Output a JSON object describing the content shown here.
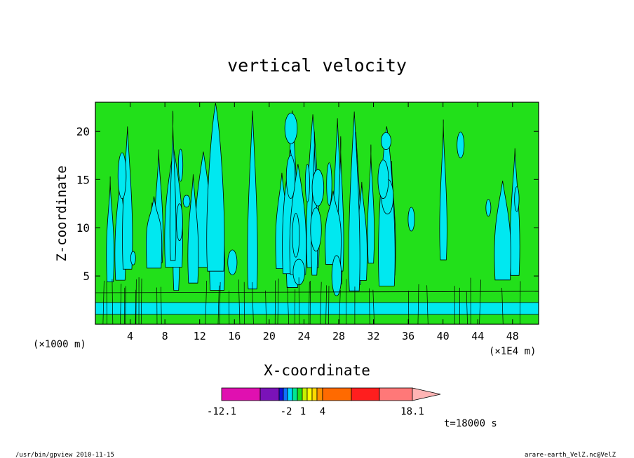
{
  "chart_data": {
    "type": "contour",
    "title": "vertical velocity",
    "xlabel": "X-coordinate",
    "ylabel": "Z-coordinate",
    "x_unit_left": "(×1000 m)",
    "x_unit_right": "(×1E4 m)",
    "x_ticks": [
      "4",
      "8",
      "12",
      "16",
      "20",
      "24",
      "28",
      "32",
      "36",
      "40",
      "44",
      "48"
    ],
    "y_ticks": [
      "5",
      "10",
      "15",
      "20"
    ],
    "xlim": [
      0,
      51
    ],
    "ylim": [
      0,
      23
    ],
    "fill_colors": {
      "negative": "#00e8f0",
      "positive": "#22e01a"
    },
    "colorbar": {
      "labels": [
        "-12.1",
        "-2",
        "1",
        "4",
        "18.1"
      ],
      "colors": [
        "#e010b0",
        "#7a12b8",
        "#1010d8",
        "#1070ff",
        "#00d8ff",
        "#00e890",
        "#22e01a",
        "#c8f000",
        "#ffff00",
        "#ffd800",
        "#ff9000",
        "#ff6a00",
        "#ff1e1e",
        "#ff7878",
        "#ffb4b4"
      ]
    },
    "time_label": "t=18000 s"
  },
  "footer": {
    "left": "/usr/bin/gpview  2010-11-15",
    "right": "arare-earth_VelZ.nc@VelZ"
  }
}
